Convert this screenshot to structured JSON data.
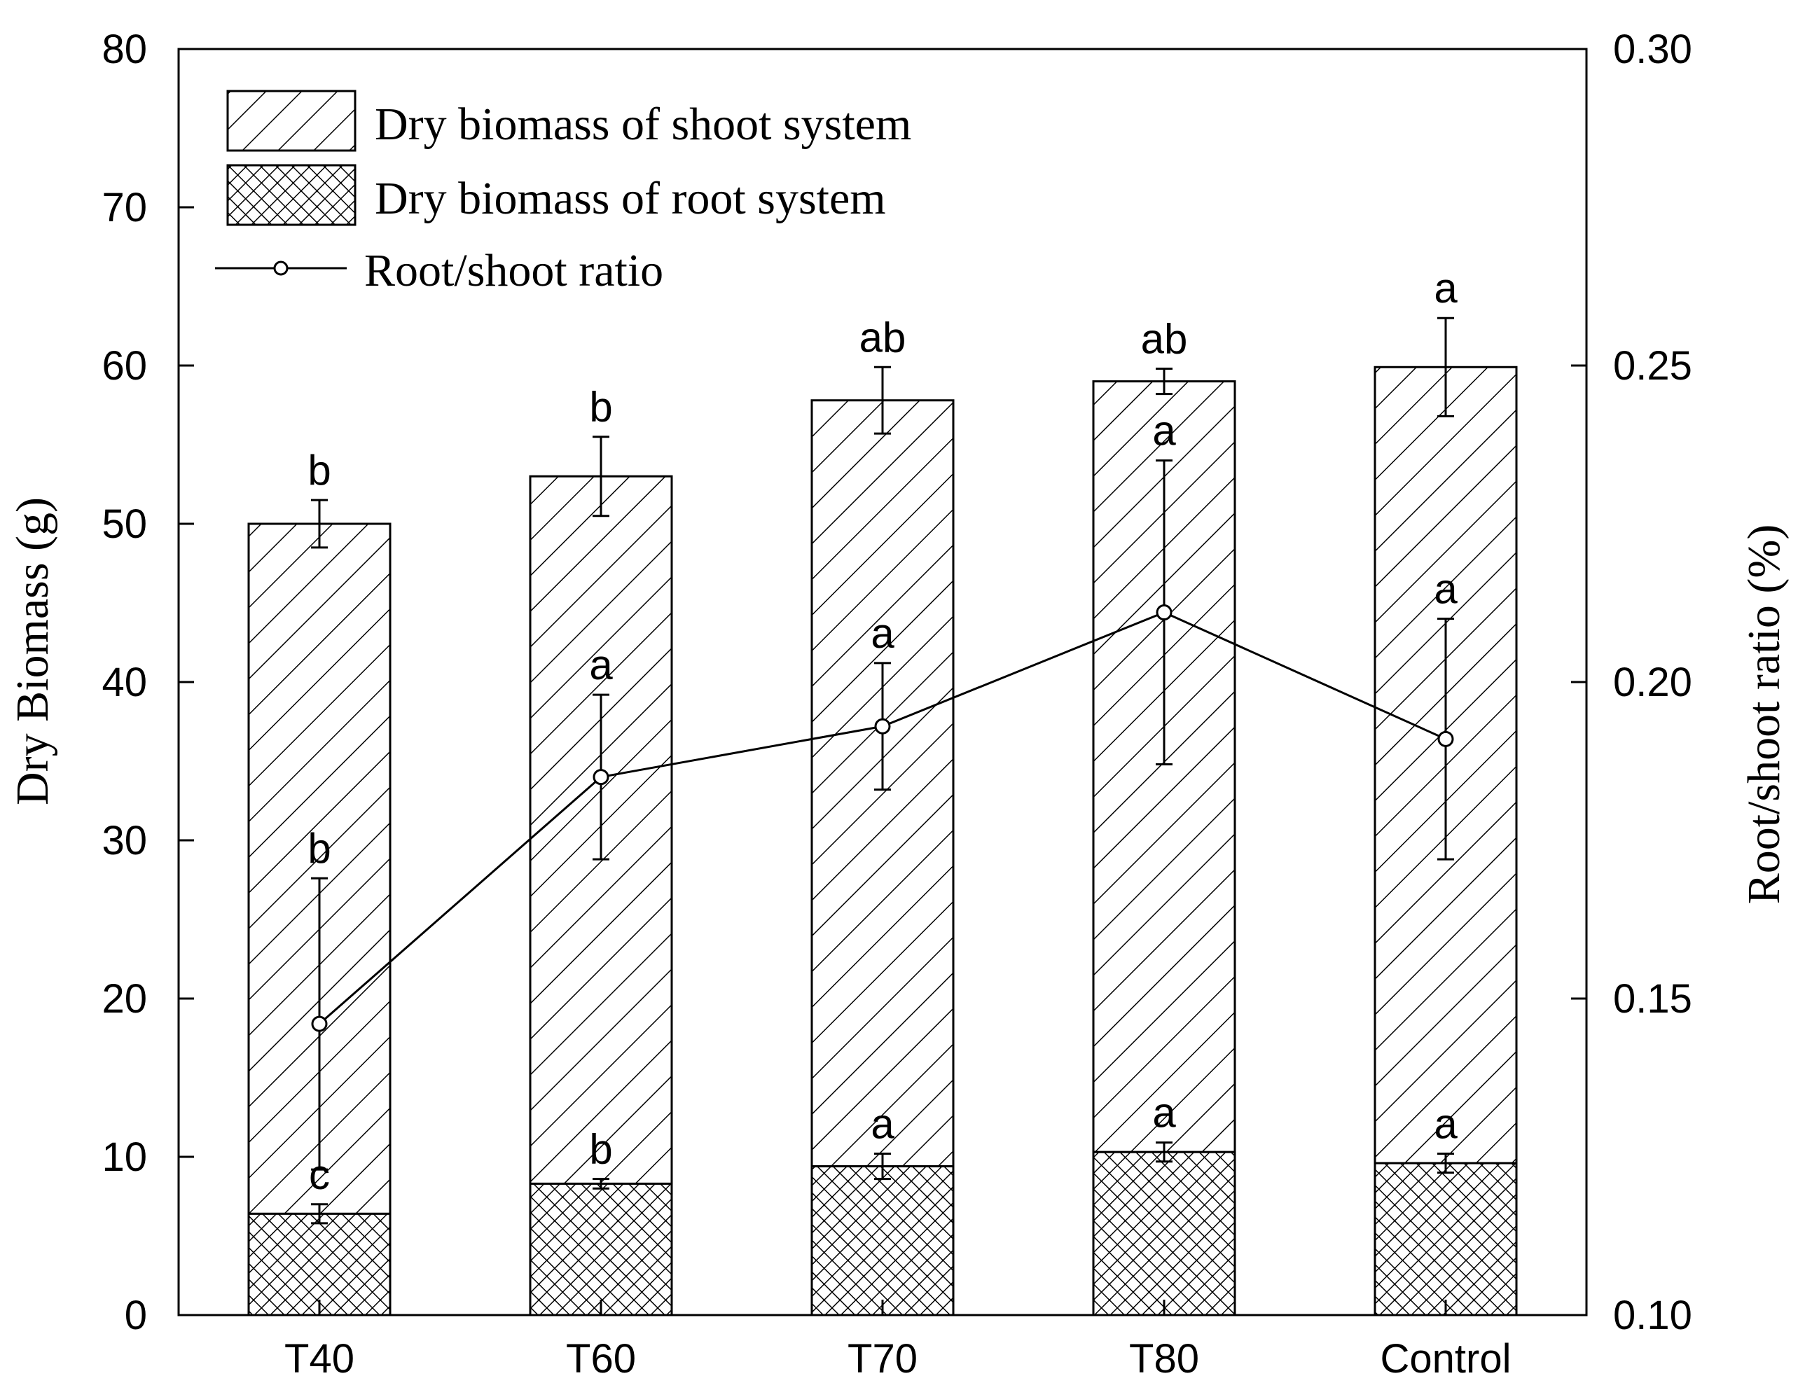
{
  "chart_data": {
    "type": "bar",
    "subtype": "stacked bar with line on secondary axis",
    "categories": [
      "T40",
      "T60",
      "T70",
      "T80",
      "Control"
    ],
    "left_axis": {
      "label": "Dry Biomass (g)",
      "ylim": [
        0,
        80
      ],
      "ticks": [
        0,
        10,
        20,
        30,
        40,
        50,
        60,
        70,
        80
      ]
    },
    "right_axis": {
      "label": "Root/shoot ratio (%)",
      "ylim": [
        0.1,
        0.3
      ],
      "ticks": [
        "0.10",
        "0.15",
        "0.20",
        "0.25",
        "0.30"
      ]
    },
    "series": [
      {
        "name": "Dry biomass of root system",
        "kind": "bar",
        "pattern": "crosshatch",
        "axis": "left",
        "values": [
          6.4,
          8.3,
          9.4,
          10.3,
          9.6
        ],
        "errors": [
          0.6,
          0.3,
          0.8,
          0.6,
          0.6
        ],
        "significance": [
          "c",
          "b",
          "a",
          "a",
          "a"
        ]
      },
      {
        "name": "Dry biomass of shoot system",
        "kind": "bar",
        "pattern": "diagonal",
        "axis": "left",
        "values": [
          43.6,
          44.7,
          48.4,
          48.7,
          50.3
        ],
        "totals": [
          50.0,
          53.0,
          57.8,
          59.0,
          59.9
        ],
        "errors": [
          1.5,
          2.5,
          2.1,
          0.8,
          3.1
        ],
        "significance": [
          "b",
          "b",
          "ab",
          "ab",
          "a"
        ]
      },
      {
        "name": "Root/shoot ratio",
        "kind": "line",
        "marker": "open-circle",
        "axis": "right",
        "values": [
          0.146,
          0.185,
          0.193,
          0.211,
          0.191
        ],
        "errors": [
          0.023,
          0.013,
          0.01,
          0.024,
          0.019
        ],
        "significance": [
          "b",
          "a",
          "a",
          "a",
          "a"
        ]
      }
    ],
    "legend": {
      "placement": "top-left",
      "entries": [
        "Dry biomass of shoot system",
        "Dry biomass of root system",
        "Root/shoot ratio"
      ]
    },
    "colors": {
      "stroke": "#000000",
      "fill": "#ffffff"
    },
    "grid": false
  }
}
